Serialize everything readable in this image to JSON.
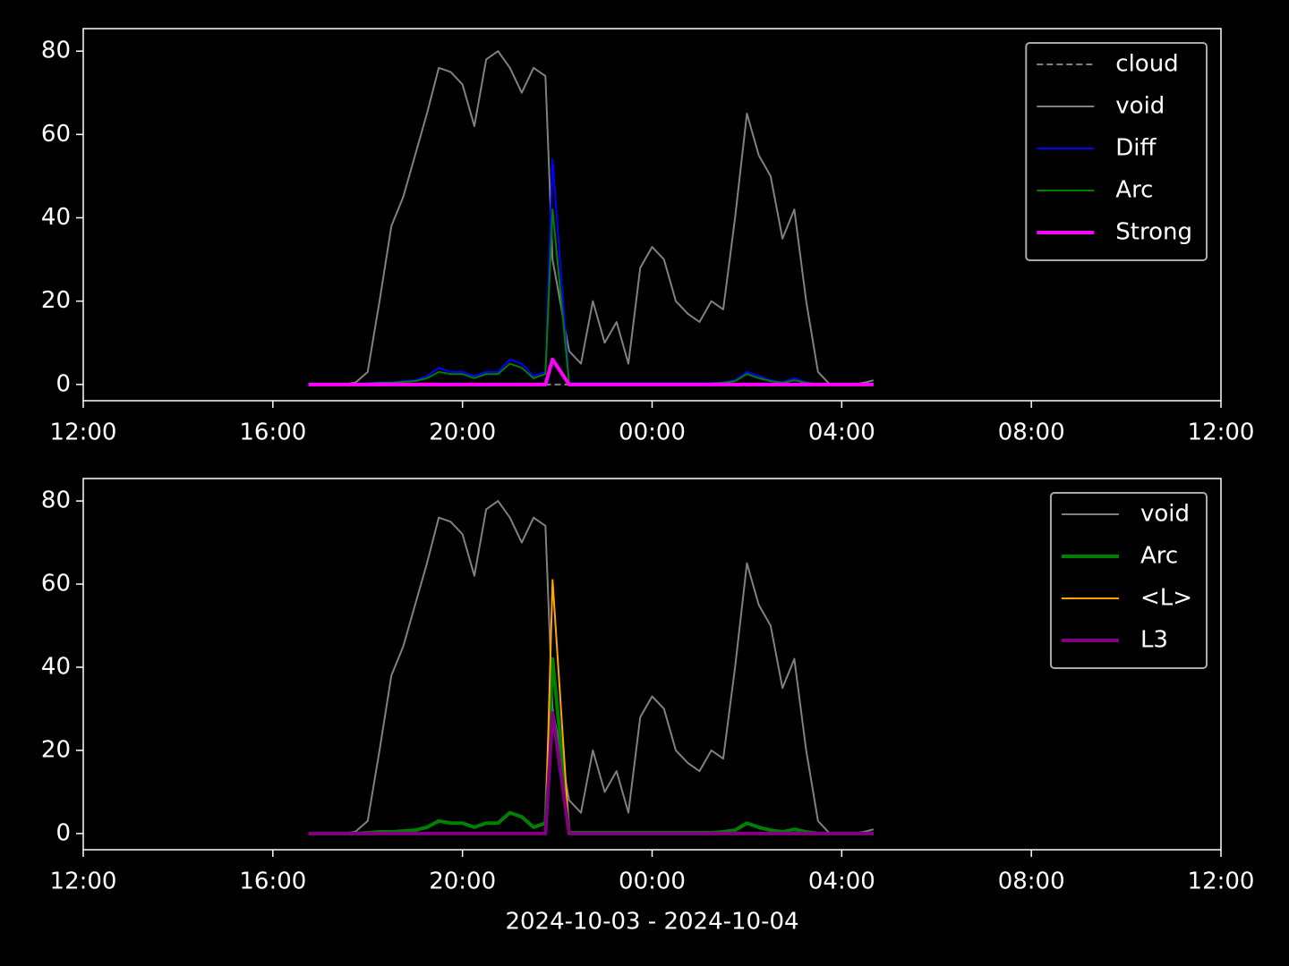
{
  "chart_data": [
    {
      "type": "line",
      "legend": "upper right",
      "xlim": [
        12,
        36
      ],
      "ylim": [
        -3.9,
        85.4
      ],
      "xticks": [
        {
          "value": 12,
          "label": "12:00"
        },
        {
          "value": 16,
          "label": "16:00"
        },
        {
          "value": 20,
          "label": "20:00"
        },
        {
          "value": 24,
          "label": "00:00"
        },
        {
          "value": 28,
          "label": "04:00"
        },
        {
          "value": 32,
          "label": "08:00"
        },
        {
          "value": 36,
          "label": "12:00"
        }
      ],
      "yticks": [
        0,
        20,
        40,
        60,
        80
      ],
      "x": [
        16.75,
        17,
        17.25,
        17.5,
        17.75,
        18,
        18.25,
        18.5,
        18.75,
        19,
        19.25,
        19.5,
        19.75,
        20,
        20.25,
        20.5,
        20.75,
        21,
        21.25,
        21.5,
        21.75,
        21.9,
        22.25,
        22.5,
        22.75,
        23,
        23.25,
        23.5,
        23.75,
        24,
        24.25,
        24.5,
        24.75,
        25,
        25.25,
        25.5,
        25.75,
        26,
        26.25,
        26.5,
        26.75,
        27,
        27.25,
        27.5,
        27.75,
        28,
        28.25,
        28.5,
        28.67
      ],
      "series": [
        {
          "name": "cloud",
          "color": "#808080",
          "linestyle": "dashed",
          "linewidth": 2,
          "values": [
            0,
            0,
            0,
            0,
            0,
            0,
            0,
            0,
            0,
            0,
            0,
            0,
            0,
            0,
            0,
            0,
            0,
            0,
            0,
            0,
            0,
            0,
            0,
            0,
            0,
            0,
            0,
            0,
            0,
            0,
            0,
            0,
            0,
            0,
            0,
            0,
            0,
            0,
            0,
            0,
            0,
            0,
            0,
            0,
            0,
            0,
            0,
            0,
            0
          ]
        },
        {
          "name": "void",
          "color": "#808080",
          "linestyle": "solid",
          "linewidth": 2,
          "values": [
            0,
            0,
            0,
            0,
            0.5,
            3,
            20,
            38,
            45,
            55,
            65,
            76,
            75,
            72,
            62,
            78,
            80,
            76,
            70,
            76,
            74,
            30,
            8,
            5,
            20,
            10,
            15,
            5,
            28,
            33,
            30,
            20,
            17,
            15,
            20,
            18,
            40,
            65,
            55,
            50,
            35,
            42,
            20,
            3,
            0,
            0,
            0,
            0.5,
            1
          ]
        },
        {
          "name": "Diff",
          "color": "#0000ff",
          "linestyle": "solid",
          "linewidth": 2,
          "values": [
            0,
            0,
            0,
            0,
            0,
            0.3,
            0.5,
            0.5,
            0.8,
            1,
            2,
            4,
            3,
            3,
            2,
            3,
            3,
            6,
            5,
            2,
            3,
            54,
            0.3,
            0.3,
            0.3,
            0.3,
            0.3,
            0.3,
            0.3,
            0.3,
            0.3,
            0.3,
            0.3,
            0.3,
            0.3,
            0.5,
            1,
            3,
            2,
            1,
            0.5,
            1.5,
            0.5,
            0,
            0,
            0,
            0,
            0,
            0
          ]
        },
        {
          "name": "Arc",
          "color": "#008000",
          "linestyle": "solid",
          "linewidth": 2,
          "values": [
            0,
            0,
            0,
            0,
            0,
            0.2,
            0.4,
            0.4,
            0.6,
            0.8,
            1.5,
            3,
            2.5,
            2.5,
            1.5,
            2.5,
            2.5,
            5,
            4,
            1.5,
            2.5,
            42,
            0.2,
            0.2,
            0.2,
            0.2,
            0.2,
            0.2,
            0.2,
            0.2,
            0.2,
            0.2,
            0.2,
            0.2,
            0.2,
            0.4,
            0.8,
            2.5,
            1.5,
            0.8,
            0.4,
            1,
            0.4,
            0,
            0,
            0,
            0,
            0,
            0
          ]
        },
        {
          "name": "Strong",
          "color": "#ff00ff",
          "linestyle": "solid",
          "linewidth": 4,
          "values": [
            0,
            0,
            0,
            0,
            0,
            0,
            0,
            0,
            0,
            0,
            0,
            0,
            0,
            0,
            0,
            0,
            0,
            0,
            0,
            0,
            0,
            6,
            0,
            0,
            0,
            0,
            0,
            0,
            0,
            0,
            0,
            0,
            0,
            0,
            0,
            0,
            0,
            0,
            0,
            0,
            0,
            0,
            0,
            0,
            0,
            0,
            0,
            0,
            0
          ]
        }
      ]
    },
    {
      "type": "line",
      "legend": "upper right",
      "xlim": [
        12,
        36
      ],
      "ylim": [
        -3.9,
        85.4
      ],
      "xlabel": "2024-10-03 - 2024-10-04",
      "xticks": [
        {
          "value": 12,
          "label": "12:00"
        },
        {
          "value": 16,
          "label": "16:00"
        },
        {
          "value": 20,
          "label": "20:00"
        },
        {
          "value": 24,
          "label": "00:00"
        },
        {
          "value": 28,
          "label": "04:00"
        },
        {
          "value": 32,
          "label": "08:00"
        },
        {
          "value": 36,
          "label": "12:00"
        }
      ],
      "yticks": [
        0,
        20,
        40,
        60,
        80
      ],
      "x": [
        16.75,
        17,
        17.25,
        17.5,
        17.75,
        18,
        18.25,
        18.5,
        18.75,
        19,
        19.25,
        19.5,
        19.75,
        20,
        20.25,
        20.5,
        20.75,
        21,
        21.25,
        21.5,
        21.75,
        21.9,
        22.25,
        22.5,
        22.75,
        23,
        23.25,
        23.5,
        23.75,
        24,
        24.25,
        24.5,
        24.75,
        25,
        25.25,
        25.5,
        25.75,
        26,
        26.25,
        26.5,
        26.75,
        27,
        27.25,
        27.5,
        27.75,
        28,
        28.25,
        28.5,
        28.67
      ],
      "series": [
        {
          "name": "void",
          "color": "#808080",
          "linestyle": "solid",
          "linewidth": 2,
          "values": [
            0,
            0,
            0,
            0,
            0.5,
            3,
            20,
            38,
            45,
            55,
            65,
            76,
            75,
            72,
            62,
            78,
            80,
            76,
            70,
            76,
            74,
            30,
            8,
            5,
            20,
            10,
            15,
            5,
            28,
            33,
            30,
            20,
            17,
            15,
            20,
            18,
            40,
            65,
            55,
            50,
            35,
            42,
            20,
            3,
            0,
            0,
            0,
            0.5,
            1
          ]
        },
        {
          "name": "Arc",
          "color": "#008000",
          "linestyle": "solid",
          "linewidth": 4,
          "values": [
            0,
            0,
            0,
            0,
            0,
            0.2,
            0.4,
            0.4,
            0.6,
            0.8,
            1.5,
            3,
            2.5,
            2.5,
            1.5,
            2.5,
            2.5,
            5,
            4,
            1.5,
            2.5,
            42,
            0.2,
            0.2,
            0.2,
            0.2,
            0.2,
            0.2,
            0.2,
            0.2,
            0.2,
            0.2,
            0.2,
            0.2,
            0.2,
            0.4,
            0.8,
            2.5,
            1.5,
            0.8,
            0.4,
            1,
            0.4,
            0,
            0,
            0,
            0,
            0,
            0
          ]
        },
        {
          "name": "<L>",
          "color": "#ffa500",
          "linestyle": "solid",
          "linewidth": 2,
          "values": [
            0,
            0,
            0,
            0,
            0,
            0,
            0,
            0,
            0,
            0,
            0,
            0,
            0,
            0,
            0,
            0,
            0,
            0,
            0,
            0,
            0,
            61,
            0,
            0,
            0,
            0,
            0,
            0,
            0,
            0,
            0,
            0,
            0,
            0,
            0,
            0,
            0,
            0,
            0,
            0,
            0,
            0,
            0,
            0,
            0,
            0,
            0,
            0,
            0
          ]
        },
        {
          "name": "L3",
          "color": "#800080",
          "linestyle": "solid",
          "linewidth": 4,
          "values": [
            0,
            0,
            0,
            0,
            0,
            0,
            0,
            0,
            0,
            0,
            0,
            0,
            0,
            0,
            0,
            0,
            0,
            0,
            0,
            0,
            0,
            29,
            0,
            0,
            0,
            0,
            0,
            0,
            0,
            0,
            0,
            0,
            0,
            0,
            0,
            0,
            0,
            0,
            0,
            0,
            0,
            0,
            0,
            0,
            0,
            0,
            0,
            0,
            0
          ]
        }
      ]
    }
  ]
}
